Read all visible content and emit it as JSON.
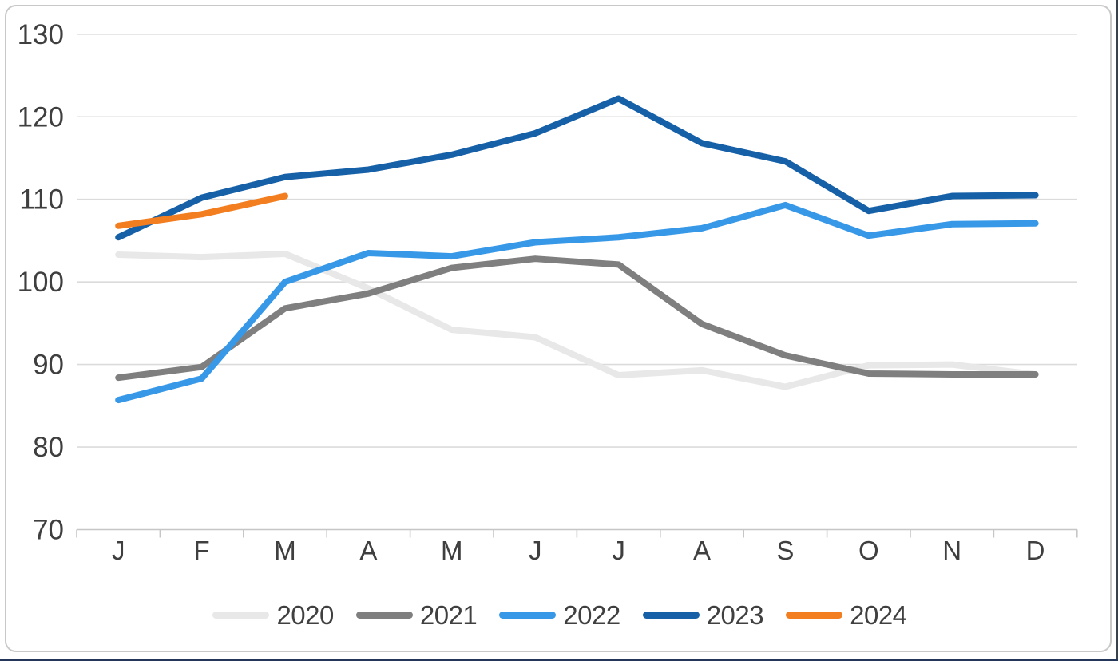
{
  "chart_data": {
    "type": "line",
    "title": "",
    "xlabel": "",
    "ylabel": "",
    "categories": [
      "J",
      "F",
      "M",
      "A",
      "M",
      "J",
      "J",
      "A",
      "S",
      "O",
      "N",
      "D"
    ],
    "y_ticks": [
      130,
      120,
      110,
      100,
      90,
      80,
      70
    ],
    "ylim": [
      70,
      130
    ],
    "grid": "horizontal-only",
    "legend_position": "bottom-center",
    "series": [
      {
        "name": "2020",
        "color": "#E8E8E8",
        "values": [
          103.3,
          103.0,
          103.4,
          99.2,
          94.2,
          93.3,
          88.7,
          89.3,
          87.3,
          89.9,
          90.0,
          88.8
        ]
      },
      {
        "name": "2021",
        "color": "#7F7F7F",
        "values": [
          88.4,
          89.7,
          96.8,
          98.6,
          101.7,
          102.8,
          102.1,
          94.9,
          91.1,
          88.9,
          88.8,
          88.8
        ]
      },
      {
        "name": "2022",
        "color": "#3798E8",
        "values": [
          85.7,
          88.3,
          100.0,
          103.5,
          103.1,
          104.8,
          105.4,
          106.5,
          109.3,
          105.6,
          107.0,
          107.1
        ]
      },
      {
        "name": "2023",
        "color": "#1660A8",
        "values": [
          105.4,
          110.2,
          112.7,
          113.6,
          115.4,
          118.0,
          122.2,
          116.8,
          114.6,
          108.6,
          110.4,
          110.5
        ]
      },
      {
        "name": "2024",
        "color": "#F37E20",
        "values": [
          106.8,
          108.2,
          110.4
        ]
      }
    ],
    "colors": {
      "gridline": "#DBDBDB",
      "axis": "#C6C6C6",
      "tick_text": "#3F3F3F",
      "frame_border": "#C9C9C9",
      "bottom_edge": "#24365A",
      "right_edge": "#39404E",
      "background": "#FFFFFF"
    }
  }
}
